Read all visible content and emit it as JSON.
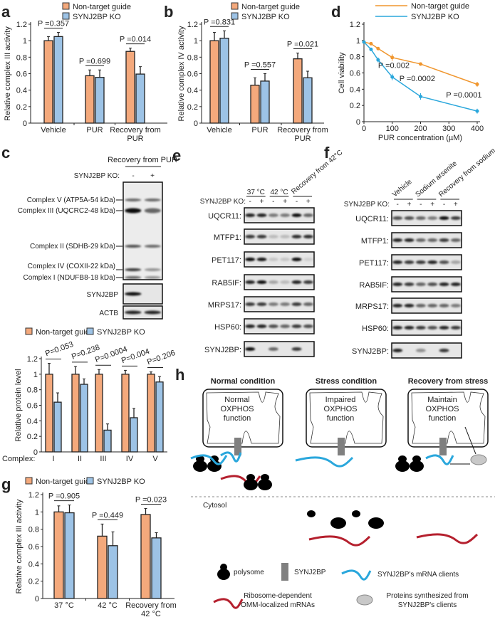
{
  "colors": {
    "non_target": "#f4a97c",
    "ko": "#9dc3e6",
    "line_non_target": "#f0962e",
    "line_ko": "#2aa7dc",
    "mrna_client": "#2aa7dc",
    "omm_mrna": "#b5202e",
    "synj2bp": "#808080",
    "protein": "#c8c8c8"
  },
  "legend": {
    "non_target": "Non-target guide",
    "ko": "SYNJ2BP KO"
  },
  "panel_labels": {
    "a": "a",
    "b": "b",
    "c": "c",
    "d": "d",
    "e": "e",
    "f": "f",
    "g": "g",
    "h": "h"
  },
  "chart_data": [
    {
      "id": "a",
      "type": "bar",
      "ylabel": "Relative complex III activity",
      "ylim": [
        0,
        1.2
      ],
      "yticks": [
        "0",
        "0.2",
        "0.4",
        "0.6",
        "0.8",
        "1",
        "1.2"
      ],
      "categories": [
        [
          "Vehicle"
        ],
        [
          "PUR"
        ],
        [
          "Recovery from",
          "PUR"
        ]
      ],
      "series": [
        {
          "name": "Non-target guide",
          "values": [
            1.0,
            0.575,
            0.87
          ],
          "errors": [
            0.05,
            0.07,
            0.04
          ]
        },
        {
          "name": "SYNJ2BP KO",
          "values": [
            1.05,
            0.555,
            0.595
          ],
          "errors": [
            0.05,
            0.09,
            0.09
          ]
        }
      ],
      "pvalues": [
        "P =0.357",
        "P =0.699",
        "P =0.014"
      ]
    },
    {
      "id": "b",
      "type": "bar",
      "ylabel": "Relative complex IV activity",
      "ylim": [
        0,
        1.2
      ],
      "yticks": [
        "0",
        "0.2",
        "0.4",
        "0.6",
        "0.8",
        "1",
        "1.2"
      ],
      "categories": [
        [
          "Vehicle"
        ],
        [
          "PUR"
        ],
        [
          "Recovery from",
          "PUR"
        ]
      ],
      "series": [
        {
          "name": "Non-target guide",
          "values": [
            1.0,
            0.46,
            0.78
          ],
          "errors": [
            0.1,
            0.09,
            0.07
          ]
        },
        {
          "name": "SYNJ2BP KO",
          "values": [
            1.03,
            0.51,
            0.55
          ],
          "errors": [
            0.09,
            0.09,
            0.08
          ]
        }
      ],
      "pvalues": [
        "P =0.831",
        "P =0.557",
        "P =0.021"
      ]
    },
    {
      "id": "d",
      "type": "line",
      "ylabel": "Cell viability",
      "xlabel": "PUR concentration (µM)",
      "ylim": [
        0,
        1.2
      ],
      "xlim": [
        0,
        400
      ],
      "yticks": [
        "0",
        "0.2",
        "0.4",
        "0.6",
        "0.8",
        "1",
        "1.2"
      ],
      "xticks": [
        "0",
        "100",
        "200",
        "300",
        "400"
      ],
      "x": [
        0,
        25,
        50,
        100,
        200,
        400
      ],
      "series": [
        {
          "name": "Non-target guide",
          "values": [
            0.98,
            0.96,
            0.9,
            0.79,
            0.71,
            0.46
          ],
          "errors": [
            0.01,
            0.01,
            0.01,
            0.04,
            0.02,
            0.03
          ]
        },
        {
          "name": "SYNJ2BP KO",
          "values": [
            0.98,
            0.89,
            0.76,
            0.55,
            0.31,
            0.13
          ],
          "errors": [
            0.01,
            0.02,
            0.03,
            0.04,
            0.04,
            0.03
          ]
        }
      ],
      "annotations": [
        {
          "text": "P =0.002",
          "x": 50,
          "y": 0.66
        },
        {
          "text": "P =0.0002",
          "x": 125,
          "y": 0.5
        },
        {
          "text": "P =0.0001",
          "x": 290,
          "y": 0.3
        }
      ]
    },
    {
      "id": "c",
      "type": "bar",
      "ylabel": "Relative protein level",
      "ylim": [
        0,
        1.2
      ],
      "yticks": [
        "0",
        "0.2",
        "0.4",
        "0.6",
        "0.8",
        "1",
        "1.2"
      ],
      "xprefix": "Complex:",
      "categories": [
        [
          "I"
        ],
        [
          "II"
        ],
        [
          "III"
        ],
        [
          "IV"
        ],
        [
          "V"
        ]
      ],
      "series": [
        {
          "name": "Non-target guide",
          "values": [
            1,
            1,
            1,
            1,
            1
          ],
          "errors": [
            0.14,
            0.1,
            0.06,
            0.05,
            0.03
          ]
        },
        {
          "name": "SYNJ2BP KO",
          "values": [
            0.64,
            0.87,
            0.28,
            0.44,
            0.9
          ],
          "errors": [
            0.12,
            0.07,
            0.08,
            0.12,
            0.07
          ]
        }
      ],
      "pvalues": [
        "P=0.053",
        "P=0.238",
        "P=0.0004",
        "P=0.004",
        "P=0.206"
      ]
    },
    {
      "id": "g",
      "type": "bar",
      "ylabel": "Relative complex III activity",
      "ylim": [
        0,
        1.2
      ],
      "yticks": [
        "0",
        "0.2",
        "0.4",
        "0.6",
        "0.8",
        "1",
        "1.2"
      ],
      "categories": [
        [
          "37 °C"
        ],
        [
          "42 °C"
        ],
        [
          "Recovery from",
          "42 °C"
        ]
      ],
      "series": [
        {
          "name": "Non-target guide",
          "values": [
            1.0,
            0.72,
            0.97
          ],
          "errors": [
            0.07,
            0.14,
            0.07
          ]
        },
        {
          "name": "SYNJ2BP KO",
          "values": [
            0.99,
            0.61,
            0.7
          ],
          "errors": [
            0.09,
            0.16,
            0.06
          ]
        }
      ],
      "pvalues": [
        "P =0.905",
        "P =0.449",
        "P =0.023"
      ]
    }
  ],
  "blot_c": {
    "header": "Recovery from PUR",
    "ko_label": "SYNJ2BP KO:",
    "lanes": [
      "-",
      "+"
    ],
    "oxphos_labels": [
      "Complex V (ATP5A-54 kDa)",
      "Complex III (UQCRC2-48 kDa)",
      "Complex II (SDHB-29 kDa)",
      "Complex IV (COXII-22 kDa)",
      "Complex I (NDUFB8-18 kDa)"
    ],
    "oxphos_intensity": [
      [
        0.6,
        0.6
      ],
      [
        1,
        0.6
      ],
      [
        0.7,
        0.6
      ],
      [
        0.8,
        0.4
      ],
      [
        0.6,
        0.4
      ]
    ],
    "rows": [
      {
        "label": "SYNJ2BP",
        "intensity": [
          1,
          0
        ]
      },
      {
        "label": "ACTB",
        "intensity": [
          0.9,
          0.9
        ]
      }
    ]
  },
  "blot_e": {
    "conditions": [
      "37 °C",
      "42 °C",
      "Recovery from 42°C"
    ],
    "ko_label": "SYNJ2BP KO:",
    "lanes": [
      "-",
      "+",
      "-",
      "+",
      "-",
      "+"
    ],
    "rows": [
      {
        "label": "UQCR11:",
        "intensity": [
          0.9,
          0.9,
          0.5,
          0.5,
          1,
          0.6
        ]
      },
      {
        "label": "MTFP1:",
        "intensity": [
          0.8,
          0.8,
          0.2,
          0.2,
          0.85,
          0.85
        ]
      },
      {
        "label": "PET117:",
        "intensity": [
          1,
          0.95,
          0.15,
          0.15,
          1,
          0.1
        ]
      },
      {
        "label": "RAB5IF:",
        "intensity": [
          0.9,
          1,
          0.3,
          0.2,
          0.9,
          0.8
        ]
      },
      {
        "label": "MRPS17:",
        "intensity": [
          0.8,
          0.8,
          0.5,
          0.5,
          0.8,
          0.6
        ]
      },
      {
        "label": "HSP60:",
        "intensity": [
          0.9,
          0.9,
          0.7,
          0.6,
          0.8,
          0.7
        ]
      },
      {
        "label": "SYNJ2BP:",
        "intensity": [
          1,
          0,
          0.6,
          0,
          0.8,
          0
        ]
      }
    ]
  },
  "blot_f": {
    "conditions": [
      "Vehicle",
      "Sodium arsenite",
      "Recovery from sodium arsenite"
    ],
    "ko_label": "SYNJ2BP KO:",
    "lanes": [
      "-",
      "+",
      "-",
      "+",
      "-",
      "+"
    ],
    "rows": [
      {
        "label": "UQCR11:",
        "intensity": [
          0.7,
          0.7,
          0.6,
          0.5,
          1,
          0.8
        ]
      },
      {
        "label": "MTFP1:",
        "intensity": [
          0.9,
          0.9,
          0.6,
          0.6,
          0.8,
          0.6
        ]
      },
      {
        "label": "PET117:",
        "intensity": [
          0.9,
          0.8,
          0.8,
          0.9,
          0.7,
          0.3
        ]
      },
      {
        "label": "RAB5IF:",
        "intensity": [
          0.9,
          0.8,
          0.6,
          0.7,
          0.9,
          0.9
        ]
      },
      {
        "label": "MRPS17:",
        "intensity": [
          0.9,
          0.9,
          0.6,
          0.6,
          0.6,
          0.5
        ]
      },
      {
        "label": "HSP60:",
        "intensity": [
          0.9,
          0.9,
          0.8,
          0.7,
          0.9,
          0.8
        ]
      },
      {
        "label": "SYNJ2BP:",
        "intensity": [
          0.9,
          0,
          0.4,
          0,
          0.8,
          0
        ]
      }
    ]
  },
  "diagram_h": {
    "titles": [
      "Normal condition",
      "Stress condition",
      "Recovery from stress"
    ],
    "mito_text": [
      [
        "Normal",
        "OXPHOS",
        "function"
      ],
      [
        "Impaired",
        "OXPHOS",
        "function"
      ],
      [
        "Maintain",
        "OXPHOS",
        "function"
      ]
    ],
    "cytosol": "Cytosol",
    "legend": {
      "polysome": "polysome",
      "synj2bp": "SYNJ2BP",
      "mrna_clients": "SYNJ2BP's mRNA clients",
      "omm_mrna": [
        "Ribosome-dependent",
        "OMM-localized mRNAs"
      ],
      "proteins": [
        "Proteins synthesized from",
        "SYNJ2BP's clients"
      ]
    }
  }
}
